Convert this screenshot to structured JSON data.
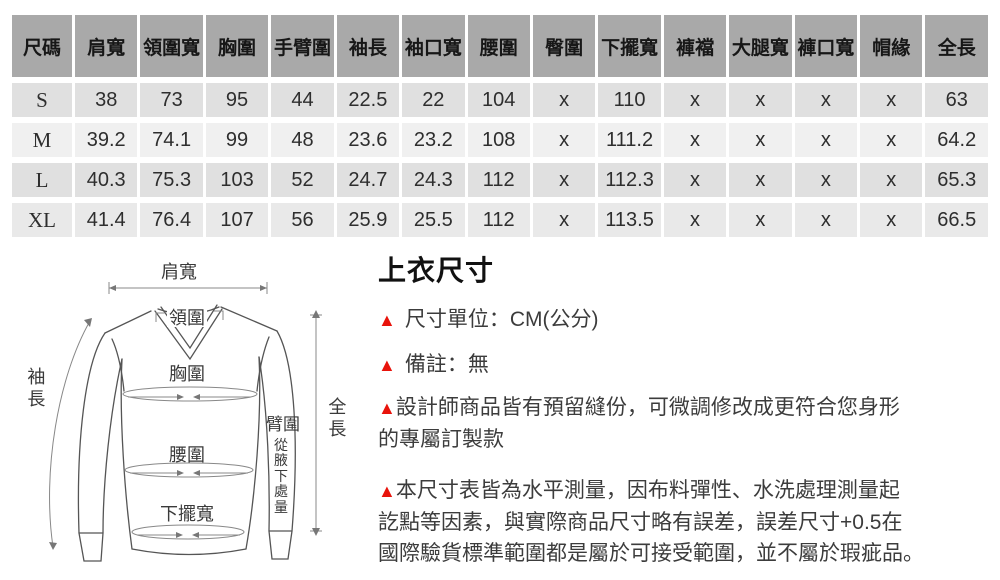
{
  "table": {
    "headers": [
      "尺碼",
      "肩寬",
      "領圍寬",
      "胸圍",
      "手臂圍",
      "袖長",
      "袖口寬",
      "腰圍",
      "臀圍",
      "下擺寬",
      "褲襠",
      "大腿寬",
      "褲口寬",
      "帽緣",
      "全長"
    ],
    "rows": [
      {
        "cells": [
          "S",
          "38",
          "73",
          "95",
          "44",
          "22.5",
          "22",
          "104",
          "x",
          "110",
          "x",
          "x",
          "x",
          "x",
          "63"
        ]
      },
      {
        "cells": [
          "M",
          "39.2",
          "74.1",
          "99",
          "48",
          "23.6",
          "23.2",
          "108",
          "x",
          "111.2",
          "x",
          "x",
          "x",
          "x",
          "64.2"
        ]
      },
      {
        "cells": [
          "L",
          "40.3",
          "75.3",
          "103",
          "52",
          "24.7",
          "24.3",
          "112",
          "x",
          "112.3",
          "x",
          "x",
          "x",
          "x",
          "65.3"
        ]
      },
      {
        "cells": [
          "XL",
          "41.4",
          "76.4",
          "107",
          "56",
          "25.9",
          "25.5",
          "112",
          "x",
          "113.5",
          "x",
          "x",
          "x",
          "x",
          "66.5"
        ]
      }
    ]
  },
  "diagram": {
    "labels": {
      "shoulder": "肩寬",
      "collar": "領圍",
      "chest": "胸圍",
      "sleeve_length": "袖長",
      "arm": "臂圍",
      "arm_note": "從腋下處量",
      "waist": "腰圍",
      "hem": "下擺寬",
      "total_length": "全長"
    }
  },
  "info": {
    "title": "上衣尺寸",
    "marker": "▲",
    "bullets": [
      {
        "text": "尺寸單位：CM(公分)"
      },
      {
        "text": "備註：無"
      },
      {
        "text": "設計師商品皆有預留縫份，可微調修改成更符合您身形\n的專屬訂製款"
      },
      {
        "text": "本尺寸表皆為水平測量，因布料彈性、水洗處理測量起\n訖點等因素，與實際商品尺寸略有誤差，誤差尺寸+0.5在\n國際驗貨標準範圍都是屬於可接受範圍，並不屬於瑕疵品。"
      }
    ]
  },
  "colors": {
    "header_bg": "#a9a9a9",
    "row_bg": "#e0e0e0",
    "row_alt_bg": "#f0f0f0",
    "accent_red": "#e8130b",
    "line_gray": "#888888"
  }
}
